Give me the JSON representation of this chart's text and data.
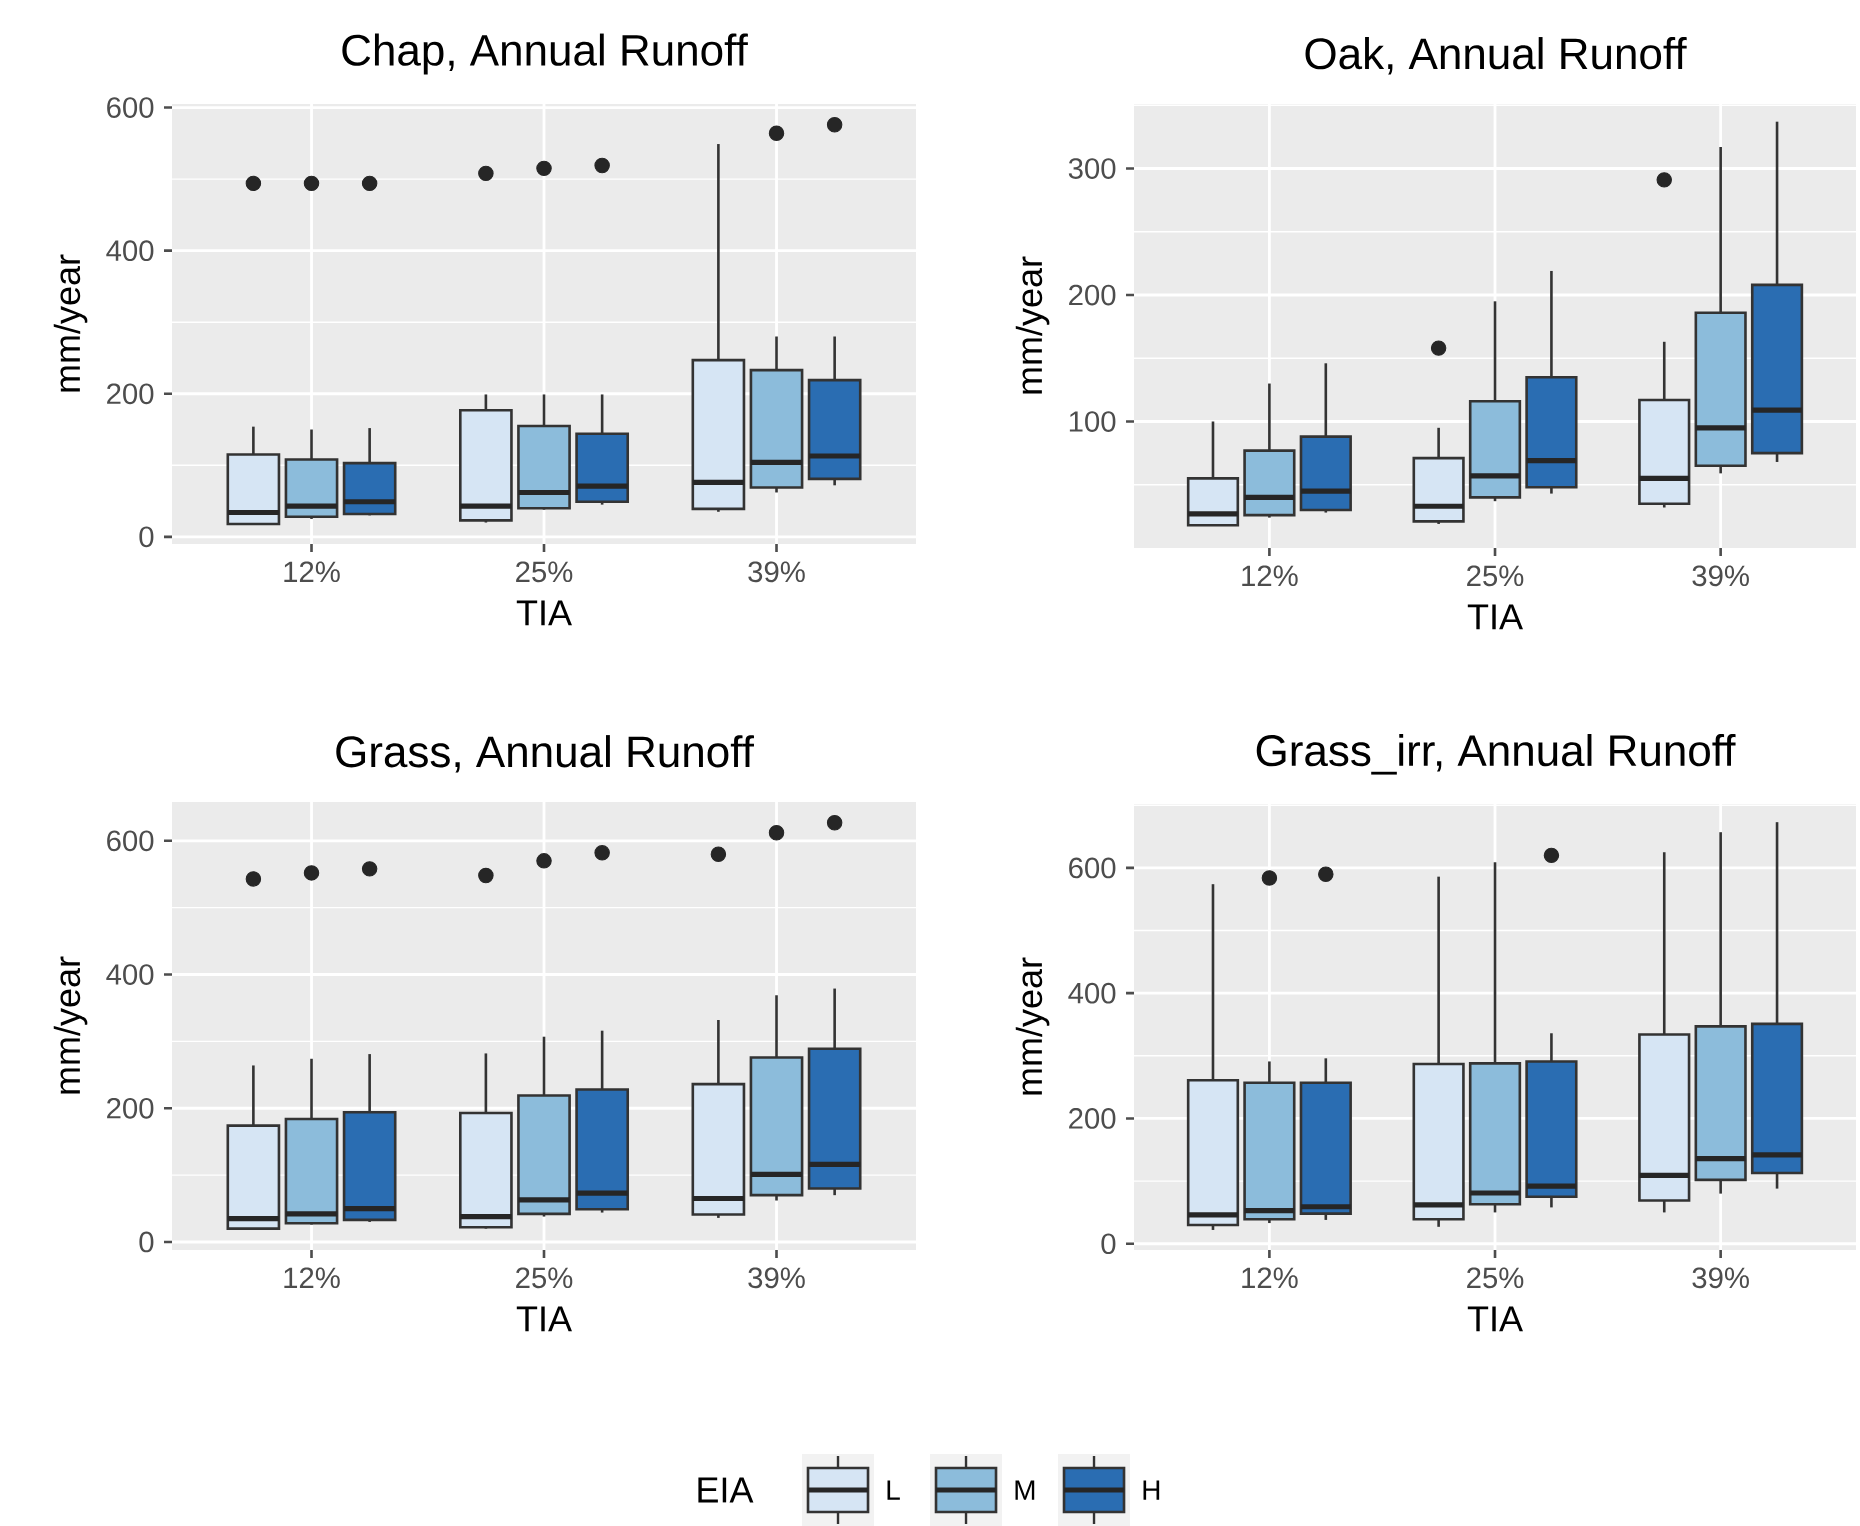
{
  "chart_data": [
    {
      "type": "box",
      "title": "Chap, Annual Runoff",
      "xlabel": "TIA",
      "ylabel": "mm/year",
      "categories": [
        "12%",
        "25%",
        "39%"
      ],
      "ylim": [
        -10,
        605
      ],
      "yticks": [
        0,
        200,
        400,
        600
      ],
      "grid": true,
      "series": [
        {
          "color": "#d6e5f4",
          "boxes": [
            {
              "low": 18,
              "q1": 18,
              "median": 34,
              "q3": 115,
              "high": 154,
              "outliers": [
                494
              ]
            },
            {
              "low": 20,
              "q1": 23,
              "median": 43,
              "q3": 177,
              "high": 199,
              "outliers": [
                508
              ]
            },
            {
              "low": 35,
              "q1": 39,
              "median": 76,
              "q3": 247,
              "high": 549
            }
          ]
        },
        {
          "color": "#8cbcdb",
          "boxes": [
            {
              "low": 25,
              "q1": 28,
              "median": 43,
              "q3": 108,
              "high": 150,
              "outliers": [
                494
              ]
            },
            {
              "low": 38,
              "q1": 40,
              "median": 62,
              "q3": 155,
              "high": 199,
              "outliers": [
                515
              ]
            },
            {
              "low": 62,
              "q1": 69,
              "median": 104,
              "q3": 233,
              "high": 280,
              "outliers": [
                564
              ]
            }
          ]
        },
        {
          "color": "#2a6db2",
          "boxes": [
            {
              "low": 30,
              "q1": 32,
              "median": 49,
              "q3": 103,
              "high": 152,
              "outliers": [
                494
              ]
            },
            {
              "low": 45,
              "q1": 49,
              "median": 71,
              "q3": 144,
              "high": 199,
              "outliers": [
                519
              ]
            },
            {
              "low": 72,
              "q1": 81,
              "median": 113,
              "q3": 219,
              "high": 280,
              "outliers": [
                576
              ]
            }
          ]
        }
      ]
    },
    {
      "type": "box",
      "title": "Oak, Annual Runoff",
      "xlabel": "TIA",
      "ylabel": "mm/year",
      "categories": [
        "12%",
        "25%",
        "39%"
      ],
      "ylim": [
        0,
        351
      ],
      "yticks": [
        100,
        200,
        300
      ],
      "grid": true,
      "series": [
        {
          "color": "#d6e5f4",
          "boxes": [
            {
              "low": 18,
              "q1": 18,
              "median": 27,
              "q3": 55,
              "high": 100
            },
            {
              "low": 19,
              "q1": 21,
              "median": 33,
              "q3": 71,
              "high": 95,
              "outliers": [
                158
              ]
            },
            {
              "low": 32,
              "q1": 35,
              "median": 55,
              "q3": 117,
              "high": 163,
              "outliers": [
                291
              ]
            }
          ]
        },
        {
          "color": "#8cbcdb",
          "boxes": [
            {
              "low": 24,
              "q1": 26,
              "median": 40,
              "q3": 77,
              "high": 130
            },
            {
              "low": 37,
              "q1": 40,
              "median": 57,
              "q3": 116,
              "high": 195
            },
            {
              "low": 59,
              "q1": 65,
              "median": 95,
              "q3": 186,
              "high": 317
            }
          ]
        },
        {
          "color": "#2a6db2",
          "boxes": [
            {
              "low": 28,
              "q1": 30,
              "median": 45,
              "q3": 88,
              "high": 146
            },
            {
              "low": 43,
              "q1": 48,
              "median": 69,
              "q3": 135,
              "high": 219
            },
            {
              "low": 68,
              "q1": 75,
              "median": 109,
              "q3": 208,
              "high": 337
            }
          ]
        }
      ]
    },
    {
      "type": "box",
      "title": "Grass, Annual Runoff",
      "xlabel": "TIA",
      "ylabel": "mm/year",
      "categories": [
        "12%",
        "25%",
        "39%"
      ],
      "ylim": [
        -12,
        658
      ],
      "yticks": [
        0,
        200,
        400,
        600
      ],
      "grid": true,
      "series": [
        {
          "color": "#d6e5f4",
          "boxes": [
            {
              "low": 18,
              "q1": 20,
              "median": 35,
              "q3": 174,
              "high": 264,
              "outliers": [
                543
              ]
            },
            {
              "low": 20,
              "q1": 22,
              "median": 38,
              "q3": 193,
              "high": 282,
              "outliers": [
                548
              ]
            },
            {
              "low": 36,
              "q1": 41,
              "median": 65,
              "q3": 236,
              "high": 332,
              "outliers": [
                580
              ]
            }
          ]
        },
        {
          "color": "#8cbcdb",
          "boxes": [
            {
              "low": 26,
              "q1": 28,
              "median": 42,
              "q3": 184,
              "high": 274,
              "outliers": [
                552
              ]
            },
            {
              "low": 38,
              "q1": 42,
              "median": 63,
              "q3": 219,
              "high": 307,
              "outliers": [
                570
              ]
            },
            {
              "low": 62,
              "q1": 70,
              "median": 101,
              "q3": 276,
              "high": 369,
              "outliers": [
                612
              ]
            }
          ]
        },
        {
          "color": "#2a6db2",
          "boxes": [
            {
              "low": 30,
              "q1": 33,
              "median": 50,
              "q3": 194,
              "high": 281,
              "outliers": [
                558
              ]
            },
            {
              "low": 44,
              "q1": 49,
              "median": 73,
              "q3": 228,
              "high": 316,
              "outliers": [
                582
              ]
            },
            {
              "low": 70,
              "q1": 80,
              "median": 116,
              "q3": 289,
              "high": 379,
              "outliers": [
                627
              ]
            }
          ]
        }
      ]
    },
    {
      "type": "box",
      "title": "Grass_irr, Annual Runoff",
      "xlabel": "TIA",
      "ylabel": "mm/year",
      "categories": [
        "12%",
        "25%",
        "39%"
      ],
      "ylim": [
        -10,
        702
      ],
      "yticks": [
        0,
        200,
        400,
        600
      ],
      "grid": true,
      "legend": "bottom",
      "legend_title": "EIA",
      "series": [
        {
          "name": "L",
          "color": "#d6e5f4",
          "boxes": [
            {
              "low": 22,
              "q1": 30,
              "median": 46,
              "q3": 261,
              "high": 574
            },
            {
              "low": 27,
              "q1": 39,
              "median": 62,
              "q3": 287,
              "high": 586
            },
            {
              "low": 50,
              "q1": 69,
              "median": 109,
              "q3": 334,
              "high": 625
            }
          ]
        },
        {
          "name": "M",
          "color": "#8cbcdb",
          "boxes": [
            {
              "low": 33,
              "q1": 39,
              "median": 53,
              "q3": 257,
              "high": 291,
              "outliers": [
                584
              ]
            },
            {
              "low": 50,
              "q1": 63,
              "median": 81,
              "q3": 288,
              "high": 609
            },
            {
              "low": 80,
              "q1": 102,
              "median": 136,
              "q3": 347,
              "high": 657
            }
          ]
        },
        {
          "name": "H",
          "color": "#2a6db2",
          "boxes": [
            {
              "low": 38,
              "q1": 48,
              "median": 59,
              "q3": 257,
              "high": 296,
              "outliers": [
                590
              ]
            },
            {
              "low": 58,
              "q1": 75,
              "median": 92,
              "q3": 291,
              "high": 336,
              "outliers": [
                620
              ]
            },
            {
              "low": 88,
              "q1": 113,
              "median": 142,
              "q3": 351,
              "high": 673
            }
          ]
        }
      ]
    }
  ]
}
